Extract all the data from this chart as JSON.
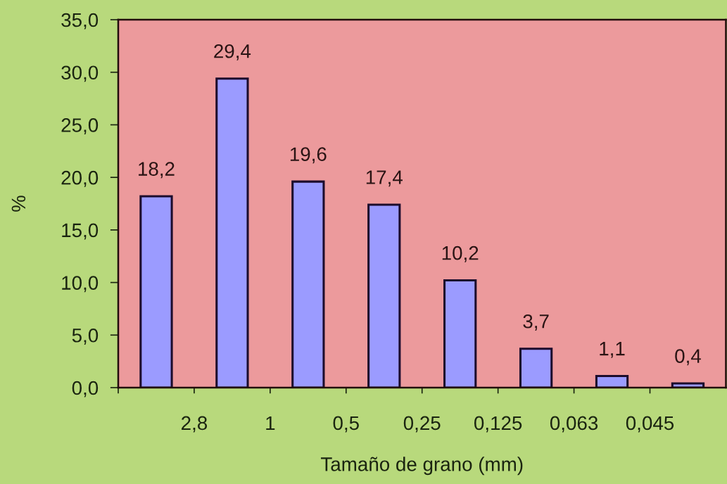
{
  "chart_data": {
    "type": "bar",
    "xlabel": "Tamaño de grano (mm)",
    "ylabel": "%",
    "categories": [
      null,
      null,
      null,
      null,
      null,
      null,
      null,
      null
    ],
    "values": [
      18.2,
      29.4,
      19.6,
      17.4,
      10.2,
      3.7,
      1.1,
      0.4
    ],
    "value_labels": [
      "18,2",
      "29,4",
      "19,6",
      "17,4",
      "10,2",
      "3,7",
      "1,1",
      "0,4"
    ],
    "color": "#9b9bff",
    "annotations": [
      "2,8",
      "1",
      "0,5",
      "0,25",
      "0,125",
      "0,063",
      "0,045"
    ],
    "ylim": [
      0,
      35
    ],
    "yticks": [
      {
        "value": 0,
        "label": "0,0"
      },
      {
        "value": 5,
        "label": "5,0"
      },
      {
        "value": 10,
        "label": "10,0"
      },
      {
        "value": 15,
        "label": "15,0"
      },
      {
        "value": 20,
        "label": "20,0"
      },
      {
        "value": 25,
        "label": "25,0"
      },
      {
        "value": 30,
        "label": "30,0"
      },
      {
        "value": 35,
        "label": "35,0"
      }
    ]
  }
}
